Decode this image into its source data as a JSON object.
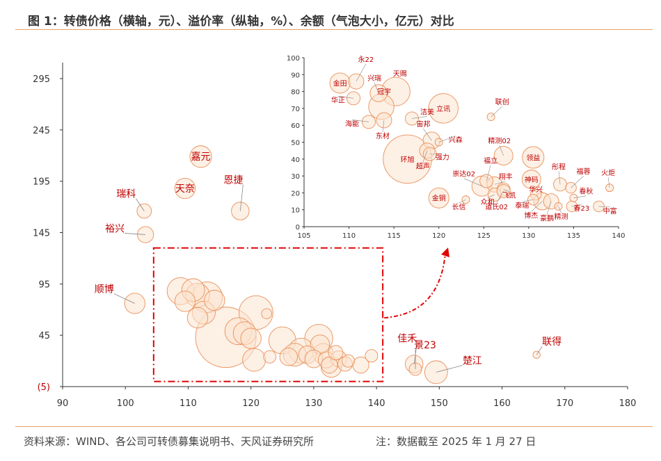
{
  "figure": {
    "title": "图 1：转债价格（横轴，元）、溢价率（纵轴，%）、余额（气泡大小，亿元）对比",
    "source": "资料来源：WIND、各公司可转债募集说明书、天风证券研究所",
    "note": "注：数据截至 2025 年 1 月 27 日"
  },
  "colors": {
    "bubble_fill": "#fbe3cf",
    "bubble_stroke": "#e8915a",
    "label": "#c00000",
    "zoom_box": "#e00000",
    "axis": "#333333",
    "rule": "#e8a060"
  },
  "chart_data": [
    {
      "type": "scatter",
      "name": "main",
      "xlabel": "",
      "ylabel": "",
      "xlim": [
        90,
        180
      ],
      "ylim": [
        -5,
        300
      ],
      "x_ticks": [
        90,
        100,
        110,
        120,
        130,
        140,
        150,
        160,
        170,
        180
      ],
      "y_ticks": [
        {
          "value": -5,
          "label": "(5)"
        },
        {
          "value": 45,
          "label": "45"
        },
        {
          "value": 95,
          "label": "95"
        },
        {
          "value": 145,
          "label": "145"
        },
        {
          "value": 195,
          "label": "195"
        },
        {
          "value": 245,
          "label": "245"
        },
        {
          "value": 295,
          "label": "295"
        }
      ],
      "zoom_box": {
        "x": [
          104.5,
          141
        ],
        "y": [
          0,
          130
        ]
      },
      "points": [
        {
          "label": "嘉元",
          "x": 112.0,
          "y": 219.0,
          "size": 9
        },
        {
          "label": "天奈",
          "x": 109.5,
          "y": 188.0,
          "size": 8
        },
        {
          "label": "恩捷",
          "x": 118.3,
          "y": 166.0,
          "size": 6
        },
        {
          "label": "瑞科",
          "x": 103.0,
          "y": 166.0,
          "size": 4
        },
        {
          "label": "裕兴",
          "x": 103.2,
          "y": 143.0,
          "size": 5
        },
        {
          "label": "顺博",
          "x": 101.5,
          "y": 76.0,
          "size": 8
        },
        {
          "label": "佳禾",
          "x": 146.0,
          "y": 17.0,
          "size": 6
        },
        {
          "label": "景23",
          "x": 146.2,
          "y": 12.0,
          "size": 3
        },
        {
          "label": "楚江",
          "x": 149.5,
          "y": 9.0,
          "size": 10
        },
        {
          "label": "联得",
          "x": 165.5,
          "y": 26.0,
          "size": 1
        },
        {
          "label": "",
          "x": 108.8,
          "y": 88.0,
          "size": 14
        },
        {
          "label": "",
          "x": 110.8,
          "y": 89.0,
          "size": 10
        },
        {
          "label": "",
          "x": 109.5,
          "y": 78.0,
          "size": 8
        },
        {
          "label": "",
          "x": 111.5,
          "y": 84.0,
          "size": 11
        },
        {
          "label": "",
          "x": 113.0,
          "y": 82.0,
          "size": 18
        },
        {
          "label": "",
          "x": 114.2,
          "y": 79.0,
          "size": 8
        },
        {
          "label": "",
          "x": 112.5,
          "y": 67.0,
          "size": 10
        },
        {
          "label": "",
          "x": 111.5,
          "y": 62.0,
          "size": 8
        },
        {
          "label": "",
          "x": 116.0,
          "y": 43.0,
          "size": 70
        },
        {
          "label": "",
          "x": 118.0,
          "y": 49.0,
          "size": 14
        },
        {
          "label": "",
          "x": 119.0,
          "y": 47.0,
          "size": 10
        },
        {
          "label": "",
          "x": 120.0,
          "y": 42.0,
          "size": 8
        },
        {
          "label": "",
          "x": 120.8,
          "y": 67.0,
          "size": 22
        },
        {
          "label": "",
          "x": 120.5,
          "y": 21.0,
          "size": 10
        },
        {
          "label": "",
          "x": 122.5,
          "y": 66.0,
          "size": 2
        },
        {
          "label": "",
          "x": 123.0,
          "y": 24.0,
          "size": 3
        },
        {
          "label": "",
          "x": 125.0,
          "y": 40.0,
          "size": 14
        },
        {
          "label": "",
          "x": 126.0,
          "y": 24.0,
          "size": 6
        },
        {
          "label": "",
          "x": 127.0,
          "y": 26.0,
          "size": 10
        },
        {
          "label": "",
          "x": 128.0,
          "y": 30.0,
          "size": 12
        },
        {
          "label": "",
          "x": 129.0,
          "y": 26.0,
          "size": 6
        },
        {
          "label": "",
          "x": 130.0,
          "y": 22.0,
          "size": 6
        },
        {
          "label": "",
          "x": 130.8,
          "y": 42.0,
          "size": 15
        },
        {
          "label": "",
          "x": 131.0,
          "y": 36.0,
          "size": 7
        },
        {
          "label": "",
          "x": 131.5,
          "y": 27.0,
          "size": 8
        },
        {
          "label": "",
          "x": 132.0,
          "y": 21.0,
          "size": 5
        },
        {
          "label": "",
          "x": 133.5,
          "y": 28.0,
          "size": 4
        },
        {
          "label": "",
          "x": 134.0,
          "y": 22.0,
          "size": 5
        },
        {
          "label": "",
          "x": 132.5,
          "y": 16.0,
          "size": 5
        },
        {
          "label": "",
          "x": 135.0,
          "y": 17.0,
          "size": 4
        },
        {
          "label": "",
          "x": 137.5,
          "y": 16.0,
          "size": 5
        },
        {
          "label": "",
          "x": 139.2,
          "y": 25.0,
          "size": 3
        },
        {
          "label": "",
          "x": 132.8,
          "y": 14.0,
          "size": 8
        },
        {
          "label": "",
          "x": 135.5,
          "y": 20.0,
          "size": 3
        }
      ]
    },
    {
      "type": "scatter",
      "name": "inset",
      "xlim": [
        105,
        140
      ],
      "ylim": [
        0,
        100
      ],
      "x_ticks": [
        105,
        110,
        115,
        120,
        125,
        130,
        135,
        140
      ],
      "y_ticks": [
        0,
        10,
        20,
        30,
        40,
        50,
        60,
        70,
        80,
        90,
        100
      ],
      "points": [
        {
          "label": "永22",
          "x": 110.8,
          "y": 86.0,
          "size": 4
        },
        {
          "label": "金田",
          "x": 109.0,
          "y": 85.0,
          "size": 7
        },
        {
          "label": "兴瑞",
          "x": 113.3,
          "y": 79.0,
          "size": 5
        },
        {
          "label": "天赐",
          "x": 115.2,
          "y": 80.0,
          "size": 14
        },
        {
          "label": "华正",
          "x": 110.5,
          "y": 76.0,
          "size": 3
        },
        {
          "label": "冠宇",
          "x": 113.6,
          "y": 71.0,
          "size": 11
        },
        {
          "label": "洁美",
          "x": 117.0,
          "y": 64.0,
          "size": 3
        },
        {
          "label": "立讯",
          "x": 120.5,
          "y": 70.0,
          "size": 15
        },
        {
          "label": "联创",
          "x": 125.8,
          "y": 65.0,
          "size": 1
        },
        {
          "label": "海能",
          "x": 112.2,
          "y": 62.0,
          "size": 3
        },
        {
          "label": "东材",
          "x": 113.9,
          "y": 63.0,
          "size": 4
        },
        {
          "label": "宙邦",
          "x": 119.2,
          "y": 51.0,
          "size": 5
        },
        {
          "label": "兴森",
          "x": 120.0,
          "y": 50.0,
          "size": 1
        },
        {
          "label": "精测02",
          "x": 127.2,
          "y": 42.0,
          "size": 6
        },
        {
          "label": "强力",
          "x": 119.0,
          "y": 43.0,
          "size": 3
        },
        {
          "label": "环旭",
          "x": 116.5,
          "y": 40.0,
          "size": 40
        },
        {
          "label": "超声",
          "x": 118.7,
          "y": 45.0,
          "size": 4
        },
        {
          "label": "领益",
          "x": 130.5,
          "y": 41.0,
          "size": 8
        },
        {
          "label": "崇达02",
          "x": 124.8,
          "y": 24.0,
          "size": 7
        },
        {
          "label": "福立",
          "x": 125.3,
          "y": 27.0,
          "size": 3
        },
        {
          "label": "翔丰",
          "x": 126.2,
          "y": 25.0,
          "size": 4
        },
        {
          "label": "神码",
          "x": 130.3,
          "y": 28.0,
          "size": 6
        },
        {
          "label": "彤程",
          "x": 133.5,
          "y": 25.0,
          "size": 3
        },
        {
          "label": "福蓉",
          "x": 134.7,
          "y": 23.0,
          "size": 2
        },
        {
          "label": "火炬",
          "x": 139.0,
          "y": 23.0,
          "size": 1
        },
        {
          "label": "飞凯",
          "x": 127.2,
          "y": 22.0,
          "size": 3
        },
        {
          "label": "华兴",
          "x": 130.8,
          "y": 19.0,
          "size": 2
        },
        {
          "label": "春秋",
          "x": 135.0,
          "y": 17.0,
          "size": 1
        },
        {
          "label": "金铜",
          "x": 120.0,
          "y": 17.0,
          "size": 7
        },
        {
          "label": "长信",
          "x": 123.0,
          "y": 16.0,
          "size": 1
        },
        {
          "label": "众和",
          "x": 126.2,
          "y": 19.0,
          "size": 3
        },
        {
          "label": "道氏02",
          "x": 127.2,
          "y": 21.0,
          "size": 3
        },
        {
          "label": "泰瑞",
          "x": 130.5,
          "y": 16.0,
          "size": 2
        },
        {
          "label": "博杰",
          "x": 131.5,
          "y": 15.0,
          "size": 5
        },
        {
          "label": "豪鹏",
          "x": 132.5,
          "y": 15.0,
          "size": 4
        },
        {
          "label": "精测",
          "x": 133.3,
          "y": 12.0,
          "size": 1
        },
        {
          "label": "春23",
          "x": 134.8,
          "y": 12.0,
          "size": 2
        },
        {
          "label": "中富",
          "x": 137.8,
          "y": 12.0,
          "size": 2
        }
      ]
    }
  ]
}
